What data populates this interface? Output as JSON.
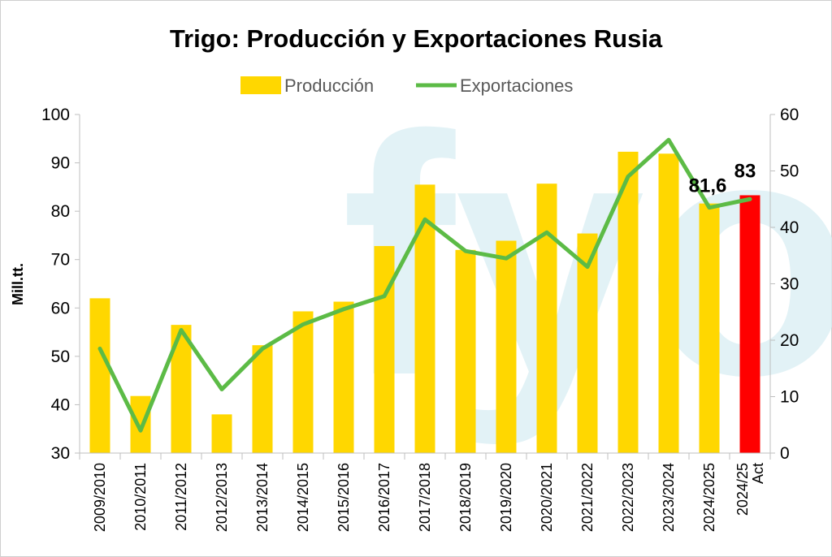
{
  "chart_data": {
    "type": "bar+line",
    "title": "Trigo: Producción y Exportaciones Rusia",
    "ylabel": "Mill.tt.",
    "categories": [
      "2009/2010",
      "2010/2011",
      "2011/2012",
      "2012/2013",
      "2013/2014",
      "2014/2015",
      "2015/2016",
      "2016/2017",
      "2017/2018",
      "2018/2019",
      "2019/2020",
      "2020/2021",
      "2021/2022",
      "2022/2023",
      "2023/2024",
      "2024/2025",
      "2024/25 Act"
    ],
    "series": [
      {
        "name": "Producción",
        "type": "bar",
        "axis": "left",
        "color": "#FFD700",
        "values": [
          62,
          41.8,
          56.5,
          38,
          52.3,
          59.3,
          61.3,
          72.8,
          85.5,
          72,
          73.9,
          85.7,
          75.4,
          92.3,
          91.9,
          81.6,
          83.3
        ],
        "highlight": {
          "index": 16,
          "color": "#FF0000"
        }
      },
      {
        "name": "Exportaciones",
        "type": "line",
        "axis": "right",
        "color": "#5CBB46",
        "values": [
          18.5,
          4,
          21.8,
          11.3,
          18.5,
          22.8,
          25.5,
          27.8,
          41.4,
          35.8,
          34.5,
          39.1,
          33,
          49,
          55.5,
          43.5,
          45
        ]
      }
    ],
    "yleft": {
      "min": 30,
      "max": 100,
      "step": 10
    },
    "yright": {
      "min": 0,
      "max": 60,
      "step": 10
    },
    "data_labels": [
      {
        "series": "Producción",
        "index": 15,
        "text": "81,6"
      },
      {
        "series": "Producción",
        "index": 16,
        "text": "83"
      }
    ],
    "legend_position": "top",
    "grid": false
  },
  "watermark": "fyo"
}
